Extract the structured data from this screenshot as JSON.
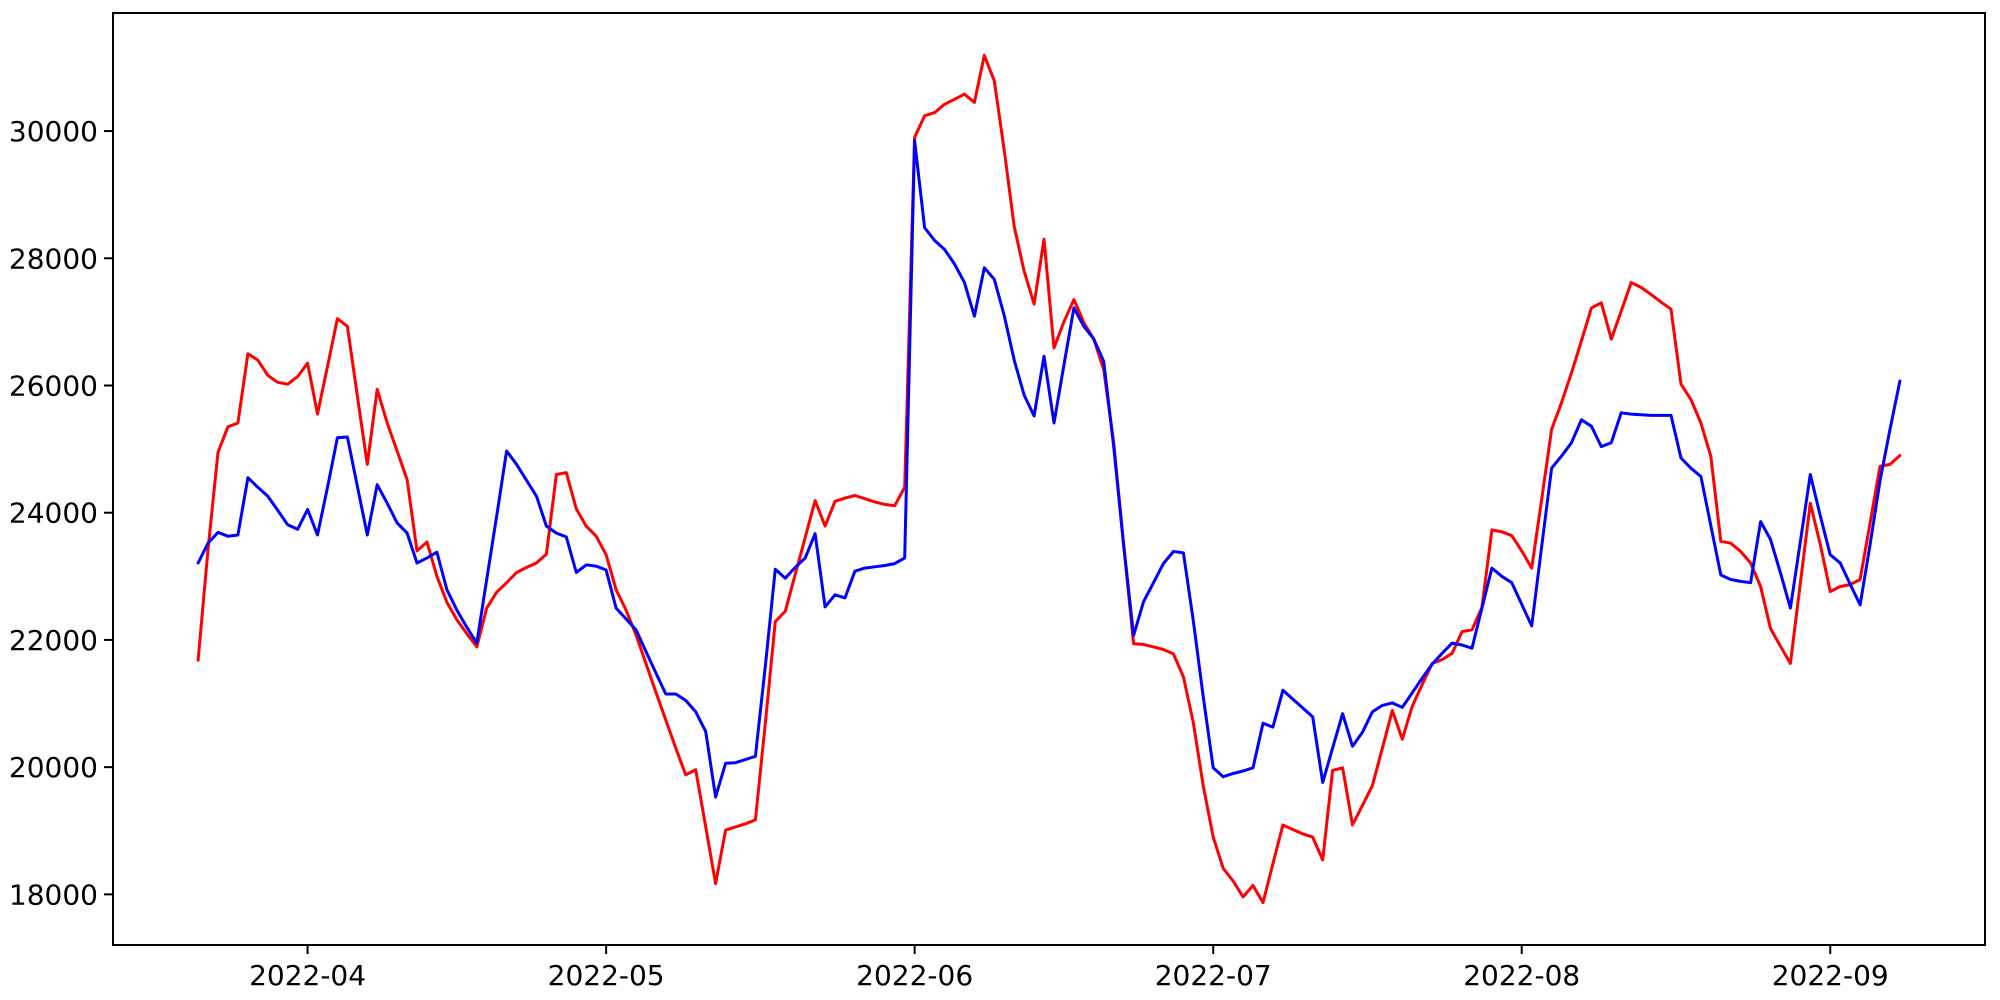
{
  "figure": {
    "background_color": "#ffffff",
    "frame_color": "#000000",
    "tick_color": "#000000",
    "tick_label_color": "#000000"
  },
  "chart_data": {
    "type": "line",
    "title": "",
    "xlabel": "",
    "ylabel": "",
    "legend": null,
    "grid": false,
    "x_start_date": "2022-03-21",
    "x_end_date": "2022-09-08",
    "x_unit": "day",
    "x_ticks": [
      {
        "label": "2022-04",
        "day_index": 11
      },
      {
        "label": "2022-05",
        "day_index": 41
      },
      {
        "label": "2022-06",
        "day_index": 72
      },
      {
        "label": "2022-07",
        "day_index": 102
      },
      {
        "label": "2022-08",
        "day_index": 133
      },
      {
        "label": "2022-09",
        "day_index": 164
      }
    ],
    "y_ticks": [
      18000,
      20000,
      22000,
      24000,
      26000,
      28000,
      30000
    ],
    "xlim_day_index": [
      -8.55,
      179.55
    ],
    "ylim": [
      17204,
      31856
    ],
    "series": [
      {
        "name": "red-series",
        "color": "#ff0000",
        "line_width": 3,
        "values": [
          21680,
          23420,
          24950,
          25350,
          25410,
          26500,
          26400,
          26160,
          26050,
          26020,
          26140,
          26350,
          25550,
          26300,
          27050,
          26930,
          25840,
          24760,
          25940,
          25410,
          24970,
          24520,
          23400,
          23540,
          23000,
          22590,
          22320,
          22100,
          21890,
          22500,
          22750,
          22900,
          23060,
          23140,
          23210,
          23350,
          24600,
          24630,
          24060,
          23790,
          23630,
          23340,
          22790,
          22470,
          22080,
          21630,
          21180,
          20740,
          20300,
          19880,
          19960,
          19060,
          18170,
          19010,
          19060,
          19110,
          19170,
          20700,
          22290,
          22450,
          23030,
          23610,
          24190,
          23790,
          24180,
          24230,
          24270,
          24220,
          24170,
          24130,
          24110,
          24400,
          29900,
          30240,
          30290,
          30420,
          30500,
          30580,
          30450,
          31190,
          30790,
          29700,
          28500,
          27800,
          27280,
          28300,
          26590,
          27000,
          27350,
          26990,
          26730,
          26250,
          25100,
          23500,
          21940,
          21930,
          21890,
          21850,
          21780,
          21420,
          20700,
          19700,
          18900,
          18410,
          18210,
          17960,
          18140,
          17870,
          18480,
          19090,
          19020,
          18950,
          18900,
          18540,
          19950,
          19990,
          19090,
          19400,
          19710,
          20300,
          20890,
          20440,
          20960,
          21300,
          21630,
          21690,
          21790,
          22130,
          22160,
          22510,
          23730,
          23700,
          23640,
          23400,
          23130,
          24200,
          25310,
          25730,
          26200,
          26700,
          27220,
          27300,
          26730,
          27170,
          27620,
          27540,
          27430,
          27310,
          27200,
          26020,
          25780,
          25410,
          24890,
          23550,
          23520,
          23390,
          23210,
          22840,
          22180,
          21900,
          21630,
          22900,
          24150,
          23500,
          22760,
          22840,
          22870,
          22950,
          23840,
          24730,
          24760,
          24900
        ]
      },
      {
        "name": "blue-series",
        "color": "#0000ff",
        "line_width": 3,
        "values": [
          23210,
          23520,
          23690,
          23630,
          23650,
          24550,
          24400,
          24260,
          24040,
          23810,
          23740,
          24050,
          23650,
          24400,
          25180,
          25190,
          24420,
          23650,
          24440,
          24150,
          23840,
          23680,
          23210,
          23290,
          23380,
          22790,
          22470,
          22200,
          21950,
          22950,
          23950,
          24970,
          24760,
          24510,
          24260,
          23790,
          23680,
          23620,
          23060,
          23180,
          23160,
          23100,
          22500,
          22330,
          22160,
          21820,
          21480,
          21150,
          21150,
          21050,
          20870,
          20560,
          19530,
          20060,
          20070,
          20120,
          20170,
          21600,
          23110,
          22970,
          23140,
          23290,
          23670,
          22520,
          22710,
          22660,
          23080,
          23130,
          23150,
          23170,
          23200,
          23290,
          29850,
          28480,
          28280,
          28140,
          27910,
          27620,
          27090,
          27850,
          27670,
          27100,
          26400,
          25850,
          25520,
          26460,
          25410,
          26320,
          27220,
          26930,
          26730,
          26380,
          25040,
          23500,
          22070,
          22600,
          22900,
          23200,
          23390,
          23370,
          22300,
          21100,
          19990,
          19850,
          19900,
          19940,
          19990,
          20690,
          20630,
          21210,
          21070,
          20930,
          20790,
          19760,
          20300,
          20840,
          20330,
          20550,
          20870,
          20970,
          21010,
          20940,
          21170,
          21400,
          21620,
          21790,
          21950,
          21920,
          21870,
          22500,
          23130,
          23000,
          22900,
          22560,
          22220,
          23460,
          24700,
          24890,
          25100,
          25460,
          25360,
          25040,
          25100,
          25570,
          25550,
          25540,
          25530,
          25530,
          25530,
          24860,
          24700,
          24570,
          23800,
          23020,
          22950,
          22920,
          22900,
          23860,
          23580,
          23050,
          22500,
          23550,
          24600,
          23950,
          23340,
          23210,
          22880,
          22550,
          23500,
          24500,
          25310,
          26070
        ]
      }
    ]
  }
}
